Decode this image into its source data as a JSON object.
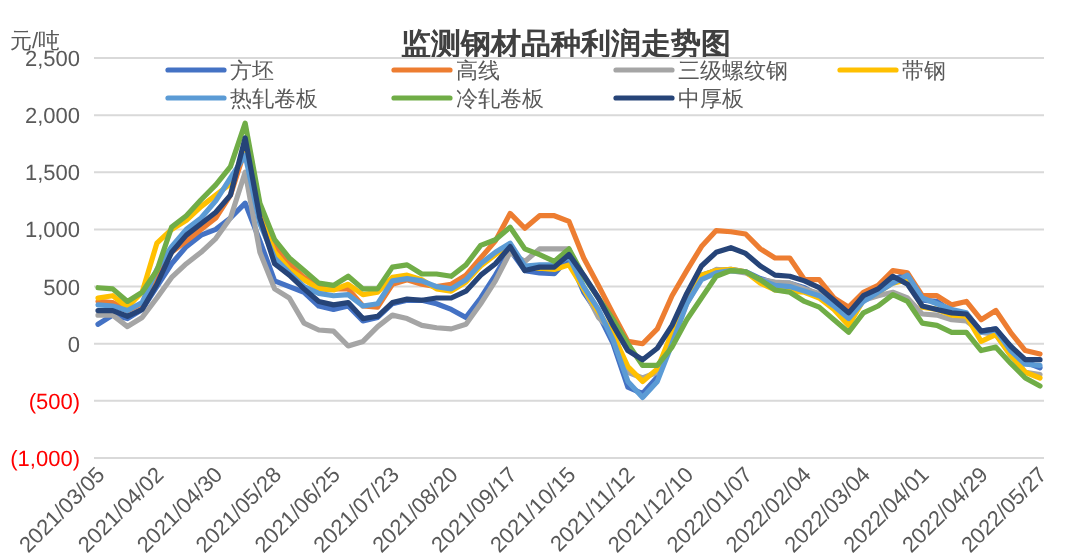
{
  "chart_data": {
    "type": "line",
    "title": "监测钢材品种利润走势图",
    "ylabel": "元/吨",
    "categories": [
      "2021/03/05",
      null,
      null,
      null,
      "2021/04/02",
      null,
      null,
      null,
      "2021/04/30",
      null,
      null,
      null,
      "2021/05/28",
      null,
      null,
      null,
      "2021/06/25",
      null,
      null,
      null,
      "2021/07/23",
      null,
      null,
      null,
      "2021/08/20",
      null,
      null,
      null,
      "2021/09/17",
      null,
      null,
      null,
      "2021/10/15",
      null,
      null,
      null,
      "2021/11/12",
      null,
      null,
      null,
      "2021/12/10",
      null,
      null,
      null,
      "2022/01/07",
      null,
      null,
      null,
      "2022/02/04",
      null,
      null,
      null,
      "2022/03/04",
      null,
      null,
      null,
      "2022/04/01",
      null,
      null,
      null,
      "2022/04/29",
      null,
      null,
      null,
      "2022/05/27"
    ],
    "ylim": [
      -1000,
      2500
    ],
    "yticks": [
      {
        "value": -1000,
        "label": "(1,000)"
      },
      {
        "value": -500,
        "label": "(500)"
      },
      0,
      {
        "value": 500,
        "label": "500"
      },
      {
        "value": 1000,
        "label": "1,000"
      },
      {
        "value": 1500,
        "label": "1,500"
      },
      {
        "value": 2000,
        "label": "2,000"
      },
      {
        "value": 2500,
        "label": "2,500"
      }
    ],
    "grid": "y",
    "legend": "top",
    "line_style": "solid",
    "series": [
      {
        "name": "方坯",
        "color": "#4472c4",
        "values": [
          170,
          250,
          220,
          300,
          500,
          700,
          850,
          950,
          1000,
          1100,
          1230,
          900,
          550,
          500,
          450,
          330,
          300,
          330,
          200,
          230,
          350,
          380,
          380,
          350,
          300,
          230,
          400,
          600,
          820,
          640,
          620,
          613,
          748,
          450,
          260,
          0,
          -380,
          -436,
          -290,
          50,
          400,
          600,
          640,
          650,
          630,
          570,
          530,
          530,
          490,
          420,
          330,
          237,
          420,
          480,
          560,
          613,
          380,
          371,
          280,
          263,
          110,
          130,
          -30,
          -160,
          -210
        ]
      },
      {
        "name": "高线",
        "color": "#ed7d31",
        "values": [
          370,
          360,
          290,
          350,
          600,
          800,
          900,
          1000,
          1100,
          1300,
          1700,
          1150,
          850,
          700,
          580,
          520,
          480,
          480,
          330,
          320,
          520,
          560,
          520,
          500,
          520,
          600,
          750,
          900,
          1140,
          1010,
          1120,
          1120,
          1070,
          750,
          510,
          260,
          20,
          0,
          130,
          420,
          640,
          850,
          990,
          980,
          960,
          830,
          750,
          750,
          560,
          560,
          400,
          320,
          450,
          510,
          640,
          620,
          420,
          420,
          340,
          370,
          210,
          290,
          100,
          -60,
          -90
        ]
      },
      {
        "name": "三级螺纹钢",
        "color": "#a5a5a5",
        "values": [
          250,
          250,
          150,
          230,
          400,
          580,
          700,
          800,
          920,
          1100,
          1500,
          800,
          480,
          400,
          180,
          120,
          110,
          -20,
          20,
          150,
          250,
          220,
          160,
          140,
          130,
          170,
          350,
          550,
          800,
          720,
          830,
          830,
          830,
          480,
          230,
          100,
          -250,
          -300,
          -250,
          50,
          350,
          580,
          650,
          640,
          620,
          560,
          540,
          530,
          480,
          440,
          350,
          200,
          380,
          420,
          450,
          400,
          260,
          250,
          210,
          200,
          100,
          80,
          -100,
          -250,
          -270
        ]
      },
      {
        "name": "带钢",
        "color": "#ffc000",
        "values": [
          400,
          420,
          320,
          450,
          880,
          1000,
          1080,
          1200,
          1300,
          1400,
          1700,
          1100,
          800,
          650,
          560,
          480,
          470,
          520,
          430,
          450,
          580,
          600,
          560,
          480,
          460,
          540,
          680,
          780,
          870,
          660,
          660,
          650,
          690,
          480,
          280,
          80,
          -200,
          -330,
          -220,
          100,
          380,
          600,
          640,
          650,
          630,
          530,
          470,
          460,
          450,
          400,
          300,
          160,
          380,
          450,
          530,
          560,
          320,
          300,
          250,
          240,
          20,
          80,
          -100,
          -250,
          -300
        ]
      },
      {
        "name": "热轧卷板",
        "color": "#5b9bd5",
        "values": [
          340,
          330,
          290,
          360,
          650,
          850,
          1000,
          1100,
          1250,
          1450,
          1650,
          1050,
          750,
          620,
          500,
          440,
          420,
          430,
          330,
          350,
          550,
          570,
          550,
          500,
          480,
          560,
          700,
          800,
          880,
          680,
          690,
          690,
          760,
          500,
          300,
          30,
          -330,
          -470,
          -330,
          0,
          350,
          560,
          620,
          640,
          630,
          560,
          510,
          500,
          460,
          420,
          330,
          220,
          370,
          450,
          530,
          600,
          400,
          350,
          300,
          270,
          100,
          120,
          -60,
          -180,
          -190
        ]
      },
      {
        "name": "冷轧卷板",
        "color": "#70ad47",
        "values": [
          490,
          480,
          370,
          450,
          640,
          1020,
          1120,
          1260,
          1390,
          1550,
          1930,
          1230,
          910,
          750,
          640,
          530,
          510,
          590,
          480,
          480,
          670,
          690,
          610,
          610,
          590,
          690,
          860,
          910,
          1020,
          830,
          780,
          720,
          830,
          590,
          400,
          210,
          0,
          -190,
          -190,
          -30,
          210,
          400,
          590,
          640,
          630,
          560,
          470,
          450,
          370,
          320,
          210,
          100,
          270,
          330,
          430,
          370,
          180,
          160,
          100,
          100,
          -60,
          -30,
          -170,
          -300,
          -370
        ]
      },
      {
        "name": "中厚板",
        "color": "#264478",
        "values": [
          290,
          290,
          240,
          300,
          520,
          800,
          950,
          1050,
          1150,
          1300,
          1800,
          1100,
          700,
          600,
          480,
          370,
          340,
          360,
          220,
          240,
          360,
          390,
          380,
          400,
          400,
          460,
          600,
          700,
          850,
          640,
          670,
          670,
          780,
          600,
          400,
          160,
          -60,
          -140,
          -40,
          160,
          440,
          680,
          800,
          840,
          790,
          680,
          600,
          590,
          550,
          490,
          380,
          270,
          420,
          480,
          590,
          520,
          330,
          300,
          270,
          260,
          110,
          130,
          -20,
          -140,
          -140
        ]
      }
    ]
  }
}
